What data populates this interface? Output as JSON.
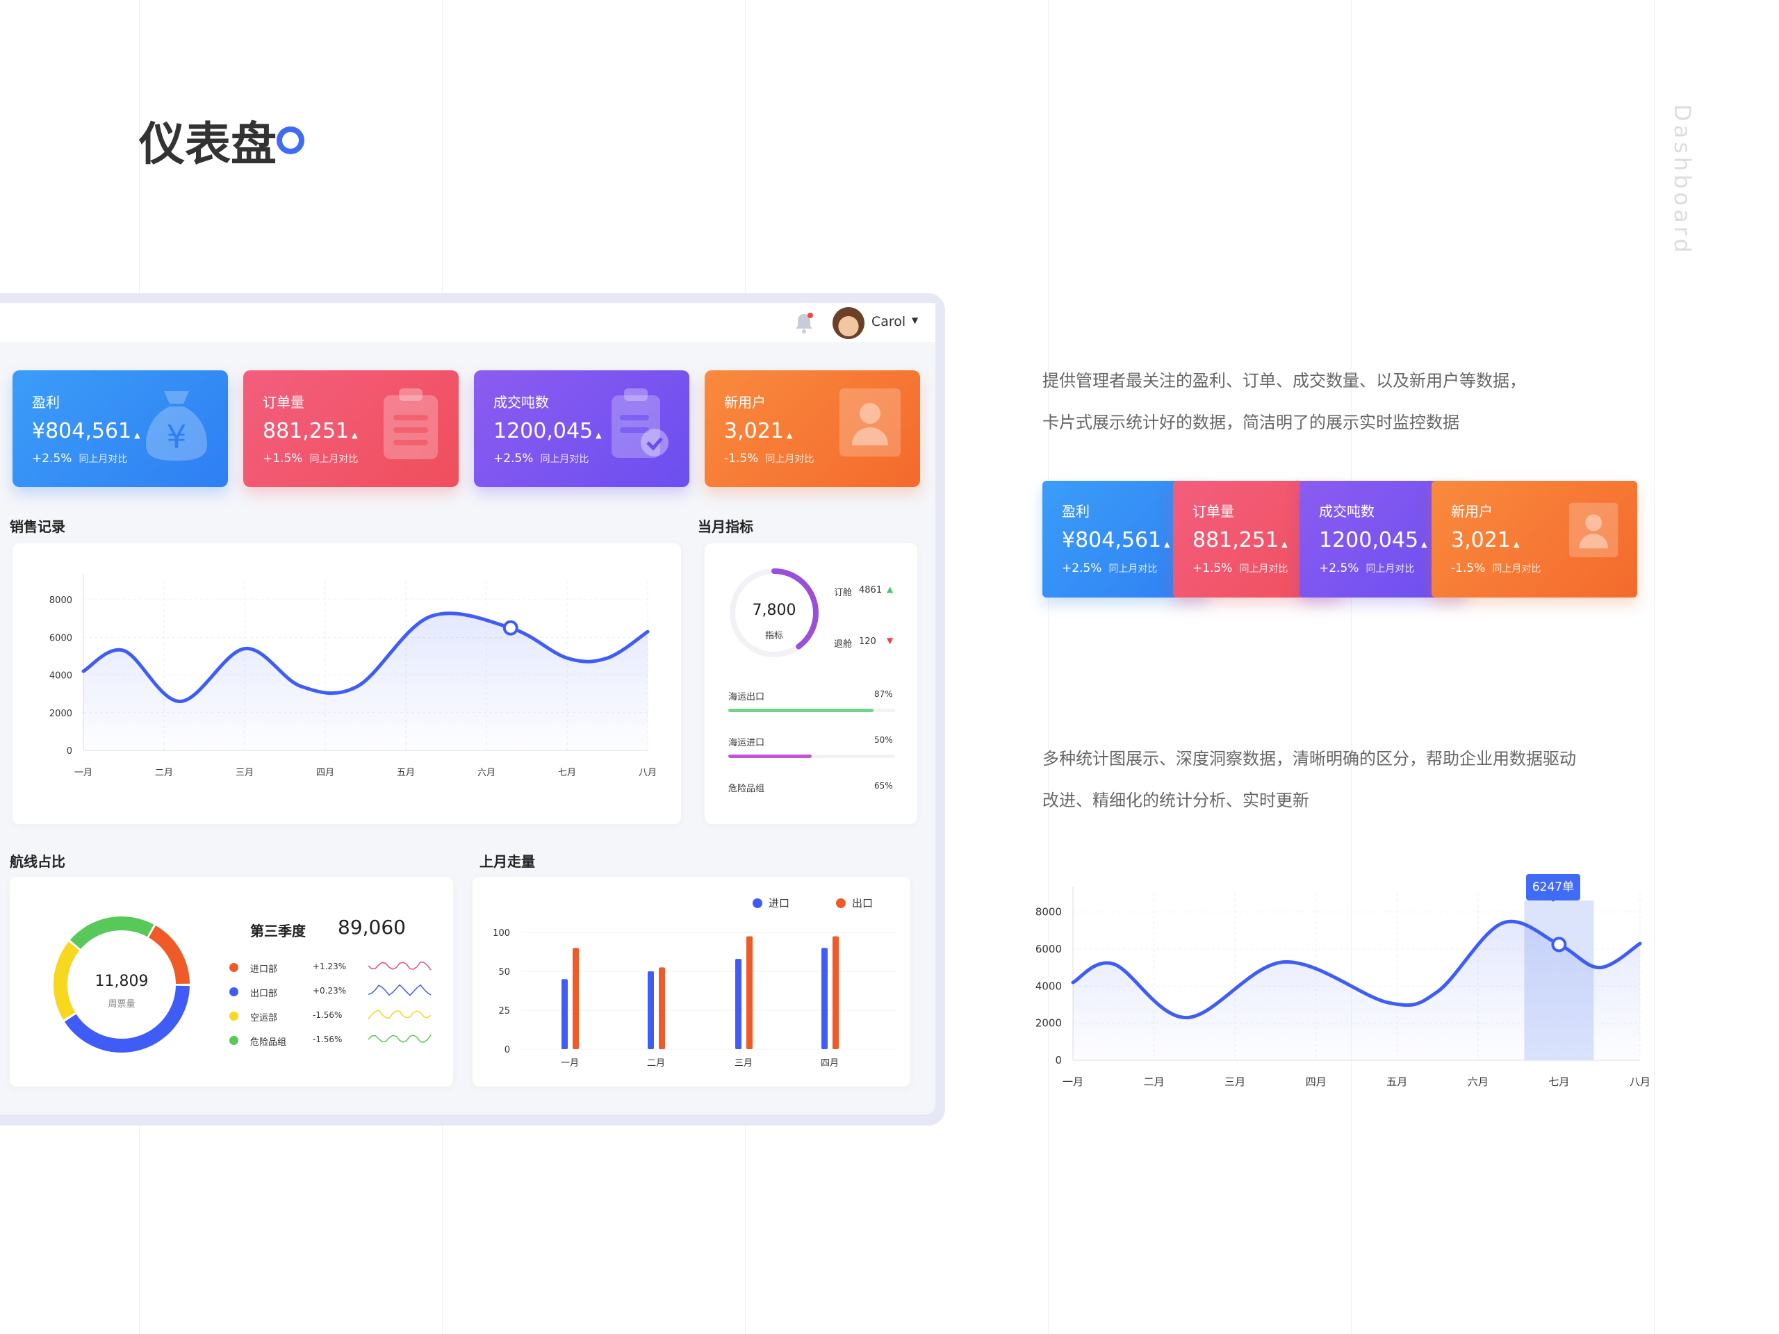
{
  "page": {
    "title": "仪表盘",
    "vertical_label": "Dashboard"
  },
  "header": {
    "user_name": "Carol"
  },
  "cards": [
    {
      "label": "盈利",
      "value": "¥804,561",
      "change": "+2.5%",
      "compare": "同上月对比",
      "color_from": "#3b9df8",
      "color_to": "#2f7ff3",
      "icon": "money-bag-icon"
    },
    {
      "label": "订单量",
      "value": "881,251",
      "change": "+1.5%",
      "compare": "同上月对比",
      "color_from": "#f35e7d",
      "color_to": "#f04f5c",
      "icon": "clipboard-list-icon"
    },
    {
      "label": "成交吨数",
      "value": "1200,045",
      "change": "+2.5%",
      "compare": "同上月对比",
      "color_from": "#8b5cf0",
      "color_to": "#6c4ef0",
      "icon": "clipboard-check-icon"
    },
    {
      "label": "新用户",
      "value": "3,021",
      "change": "-1.5%",
      "compare": "同上月对比",
      "color_from": "#f98a3e",
      "color_to": "#f46a2c",
      "icon": "user-icon"
    }
  ],
  "sales": {
    "title": "销售记录"
  },
  "monthly": {
    "title": "当月指标",
    "gauge_value": "7,800",
    "gauge_label": "指标",
    "gauge_fraction": 0.4,
    "stats": [
      {
        "label": "订舱",
        "value": "4861",
        "trend": "up"
      },
      {
        "label": "退舱",
        "value": "120",
        "trend": "down"
      }
    ],
    "bars": [
      {
        "label": "海运出口",
        "percent": "87%",
        "fraction": 0.87,
        "color": "#6fd48a"
      },
      {
        "label": "海运进口",
        "percent": "50%",
        "fraction": 0.5,
        "color": "#c255d6"
      },
      {
        "label": "危险品组",
        "percent": "65%",
        "fraction": 0.65,
        "color": "#f0f0f0"
      }
    ]
  },
  "routes": {
    "title": "航线占比",
    "center_value": "11,809",
    "center_label": "周票量",
    "quarter_label": "第三季度",
    "quarter_value": "89,060",
    "segments": [
      {
        "name": "进口部",
        "change": "+1.23%",
        "color": "#f05a28",
        "fraction": 0.17
      },
      {
        "name": "出口部",
        "change": "+0.23%",
        "color": "#3f5df6",
        "fraction": 0.41
      },
      {
        "name": "空运部",
        "change": "-1.56%",
        "color": "#f7d81e",
        "fraction": 0.2
      },
      {
        "name": "危险品组",
        "change": "-1.56%",
        "color": "#58c959",
        "fraction": 0.22
      }
    ]
  },
  "lastmonth": {
    "title": "上月走量"
  },
  "description": {
    "line1": "提供管理者最关注的盈利、订单、成交数量、以及新用户等数据，",
    "line2": "卡片式展示统计好的数据，简洁明了的展示实时监控数据",
    "line3": "多种统计图展示、深度洞察数据，清晰明确的区分，帮助企业用数据驱动",
    "line4": "改进、精细化的统计分析、实时更新"
  },
  "tooltip": {
    "text": "6247单"
  },
  "chart_data": [
    {
      "type": "area",
      "title": "销售记录",
      "categories": [
        "一月",
        "二月",
        "三月",
        "四月",
        "五月",
        "六月",
        "七月",
        "八月"
      ],
      "x": [
        0,
        0.5,
        1.2,
        2,
        2.7,
        3.4,
        4.3,
        5.3,
        6,
        6.5,
        7
      ],
      "y": [
        4200,
        5300,
        2600,
        5400,
        3400,
        3400,
        7100,
        6500,
        4900,
        4900,
        6300
      ],
      "yticks": [
        0,
        2000,
        4000,
        6000,
        8000
      ],
      "ylim": [
        0,
        9000
      ],
      "highlight_index": 7,
      "color": "#3f5df6"
    },
    {
      "type": "bar",
      "title": "上月走量",
      "categories": [
        "一月",
        "二月",
        "三月",
        "四月"
      ],
      "series": [
        {
          "name": "进口",
          "values": [
            45,
            50,
            66,
            80
          ],
          "color": "#3f5df6"
        },
        {
          "name": "出口",
          "values": [
            80,
            55,
            95,
            95
          ],
          "color": "#f05a28"
        }
      ],
      "yticks": [
        0,
        25,
        50,
        100
      ],
      "ylim": [
        0,
        100
      ]
    },
    {
      "type": "area",
      "categories": [
        "一月",
        "二月",
        "三月",
        "四月",
        "五月",
        "六月",
        "七月",
        "八月"
      ],
      "x": [
        0,
        0.5,
        1.4,
        2.6,
        3.9,
        4.5,
        5.3,
        6.0,
        6.5,
        7
      ],
      "y": [
        4200,
        5200,
        2300,
        5300,
        3100,
        3700,
        7400,
        6247,
        5000,
        6300
      ],
      "yticks": [
        0,
        2000,
        4000,
        6000,
        8000
      ],
      "ylim": [
        0,
        9000
      ],
      "highlight_index": 7,
      "highlight_band": "七月",
      "color": "#3f5df6"
    }
  ]
}
